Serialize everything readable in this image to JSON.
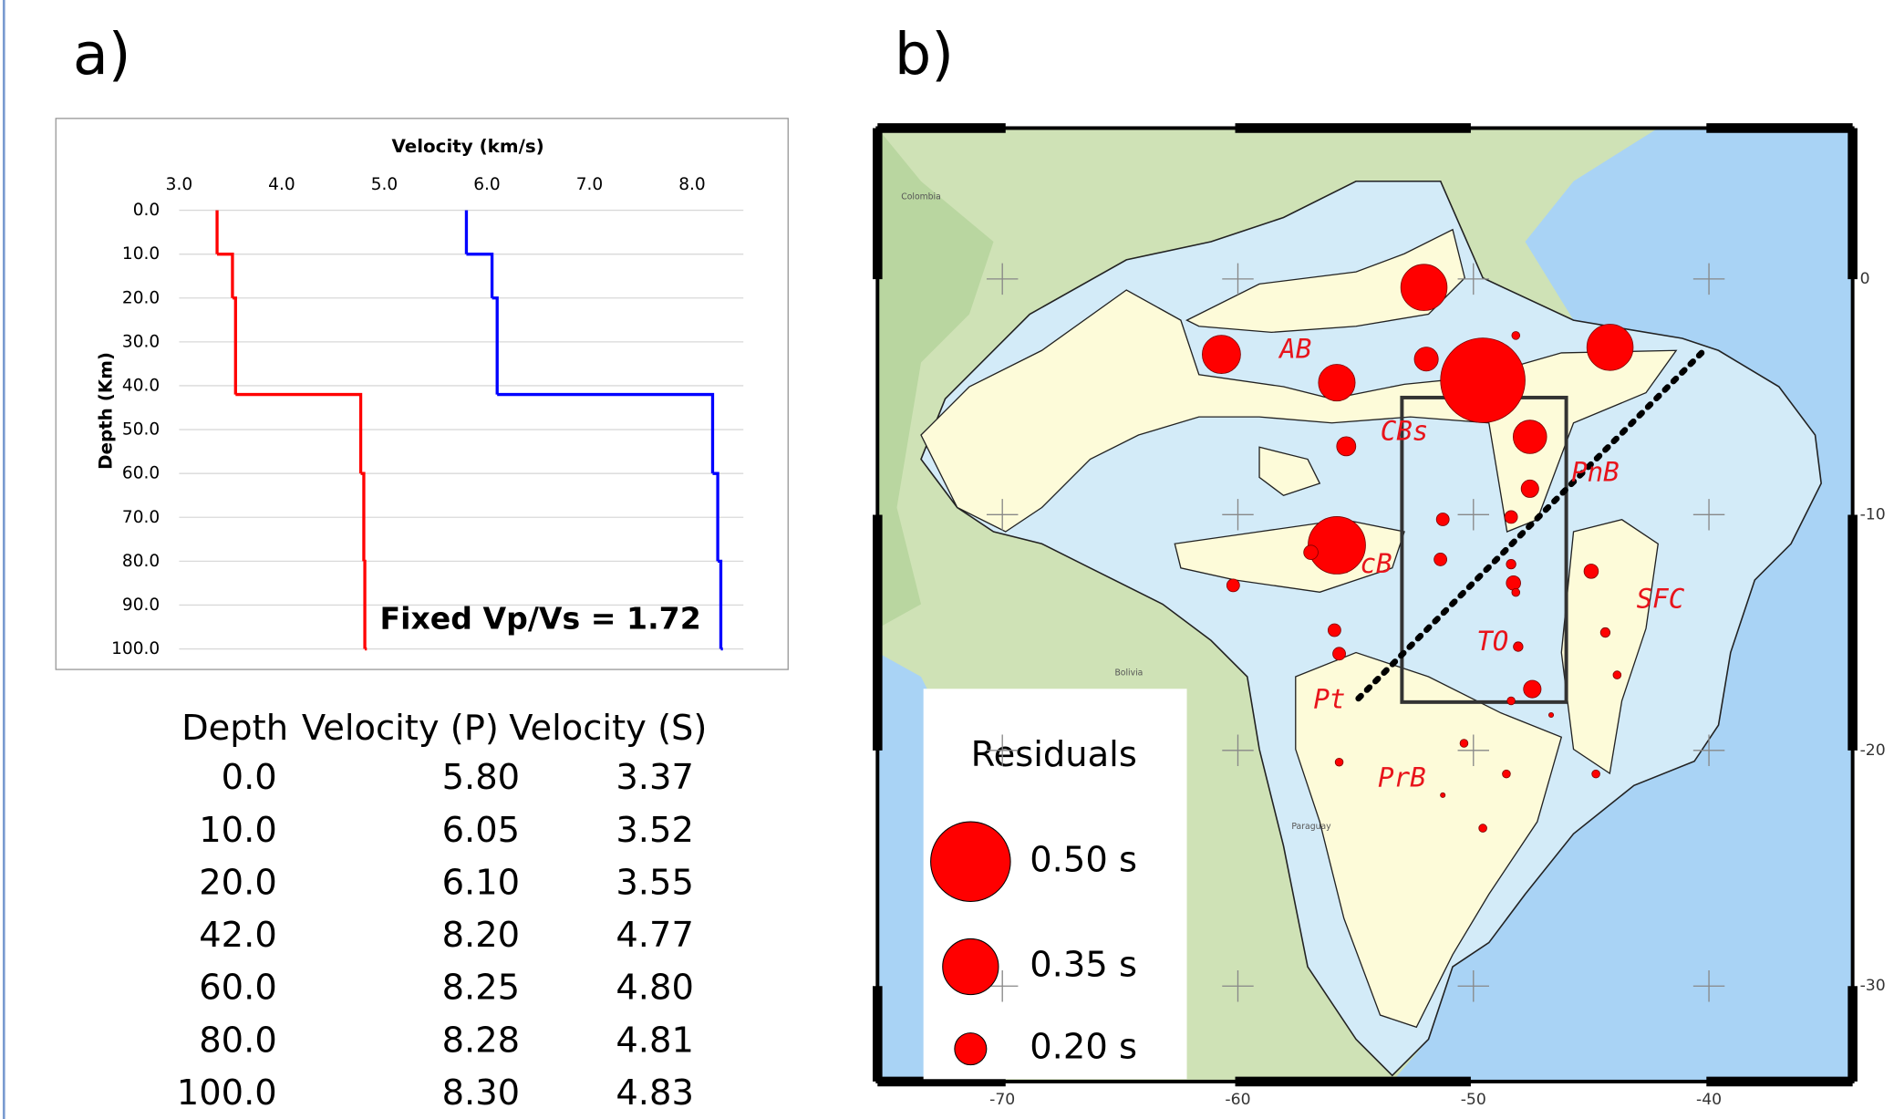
{
  "chart_data": [
    {
      "type": "line",
      "panel": "a)",
      "title": "Velocity (km/s)",
      "y_label": "Depth (Km)",
      "annotation": "Fixed Vp/Vs = 1.72",
      "orientation": "horizontal",
      "x_label": "Depth",
      "x": [
        0,
        10,
        20,
        42,
        60,
        80,
        100
      ],
      "x_labels": [
        "0.0",
        "10.0",
        "20.0",
        "42.0",
        "60.0",
        "80.0",
        "100.0"
      ],
      "series": [
        {
          "name": "Velocity (P)",
          "color": "#0000ff",
          "values": [
            5.8,
            6.05,
            6.1,
            8.2,
            8.25,
            8.28,
            8.3
          ],
          "value_labels": [
            "5.80",
            "6.05",
            "6.10",
            "8.20",
            "8.25",
            "8.28",
            "8.30"
          ]
        },
        {
          "name": "Velocity (S)",
          "color": "#ff0000",
          "values": [
            3.37,
            3.52,
            3.55,
            4.77,
            4.8,
            4.81,
            4.83
          ],
          "value_labels": [
            "3.37",
            "3.52",
            "3.55",
            "4.77",
            "4.80",
            "4.81",
            "4.83"
          ]
        }
      ],
      "xlim": [
        0,
        100
      ],
      "xticks": [
        {
          "value": 0,
          "label": "0.0"
        },
        {
          "value": 10,
          "label": "10.0"
        },
        {
          "value": 20,
          "label": "20.0"
        },
        {
          "value": 30,
          "label": "30.0"
        },
        {
          "value": 40,
          "label": "40.0"
        },
        {
          "value": 50,
          "label": "50.0"
        },
        {
          "value": 60,
          "label": "60.0"
        },
        {
          "value": 70,
          "label": "70.0"
        },
        {
          "value": 80,
          "label": "80.0"
        },
        {
          "value": 90,
          "label": "90.0"
        },
        {
          "value": 100,
          "label": "100.0"
        }
      ],
      "ylim": [
        3,
        8.5
      ],
      "yticks": [
        {
          "value": 3,
          "label": "3.0"
        },
        {
          "value": 4,
          "label": "4.0"
        },
        {
          "value": 5,
          "label": "5.0"
        },
        {
          "value": 6,
          "label": "6.0"
        },
        {
          "value": 7,
          "label": "7.0"
        },
        {
          "value": 8,
          "label": "8.0"
        }
      ],
      "grid": true
    },
    {
      "type": "bubble",
      "panel": "b)",
      "color": "#ff0000",
      "x": [
        -52.1,
        -60.7,
        -55.8,
        -52.0,
        -49.6,
        -44.2,
        -48.2,
        -47.6,
        -55.4,
        -47.6,
        -48.4,
        -51.3,
        -55.8,
        -56.9,
        -51.4,
        -48.4,
        -48.3,
        -45.0,
        -60.2,
        -48.2,
        -55.9,
        -44.4,
        -48.1,
        -55.7,
        -47.5,
        -43.9,
        -48.4,
        -50.4,
        -48.6,
        -55.7,
        -44.8,
        -51.3,
        -49.6,
        -46.7
      ],
      "y": [
        -0.36,
        -3.2,
        -4.4,
        -3.4,
        -4.3,
        -2.9,
        -2.4,
        -6.7,
        -7.1,
        -8.9,
        -10.1,
        -10.2,
        -11.3,
        -11.6,
        -11.9,
        -12.1,
        -12.9,
        -12.4,
        -13.0,
        -13.3,
        -14.9,
        -15.0,
        -15.6,
        -15.9,
        -17.4,
        -16.8,
        -17.9,
        -19.7,
        -21.0,
        -20.5,
        -21.0,
        -21.9,
        -23.3,
        -18.5
      ],
      "values": [
        0.29,
        0.24,
        0.23,
        0.15,
        0.53,
        0.29,
        0.05,
        0.21,
        0.12,
        0.11,
        0.08,
        0.08,
        0.36,
        0.09,
        0.08,
        0.06,
        0.09,
        0.09,
        0.08,
        0.05,
        0.08,
        0.06,
        0.06,
        0.08,
        0.11,
        0.05,
        0.05,
        0.05,
        0.05,
        0.05,
        0.05,
        0.03,
        0.05,
        0.03
      ],
      "xlim": [
        -75.3,
        -33.9
      ],
      "ylim": [
        -34.05,
        6.4
      ],
      "xticks": [
        -70,
        -60,
        -50,
        -40
      ],
      "yticks": [
        0,
        -10,
        -20,
        -30
      ],
      "legend": {
        "title": "Residuals",
        "sizes": [
          {
            "value": 0.5,
            "label": "0.50 s"
          },
          {
            "value": 0.35,
            "label": "0.35 s"
          },
          {
            "value": 0.2,
            "label": "0.20 s"
          }
        ]
      },
      "annotations": [
        "AB",
        "CBs",
        "PnB",
        "PcB",
        "SFC",
        "TO",
        "Pt",
        "PrB"
      ],
      "places": [
        "Colombia",
        "Bolivia",
        "Paraguay"
      ]
    }
  ]
}
